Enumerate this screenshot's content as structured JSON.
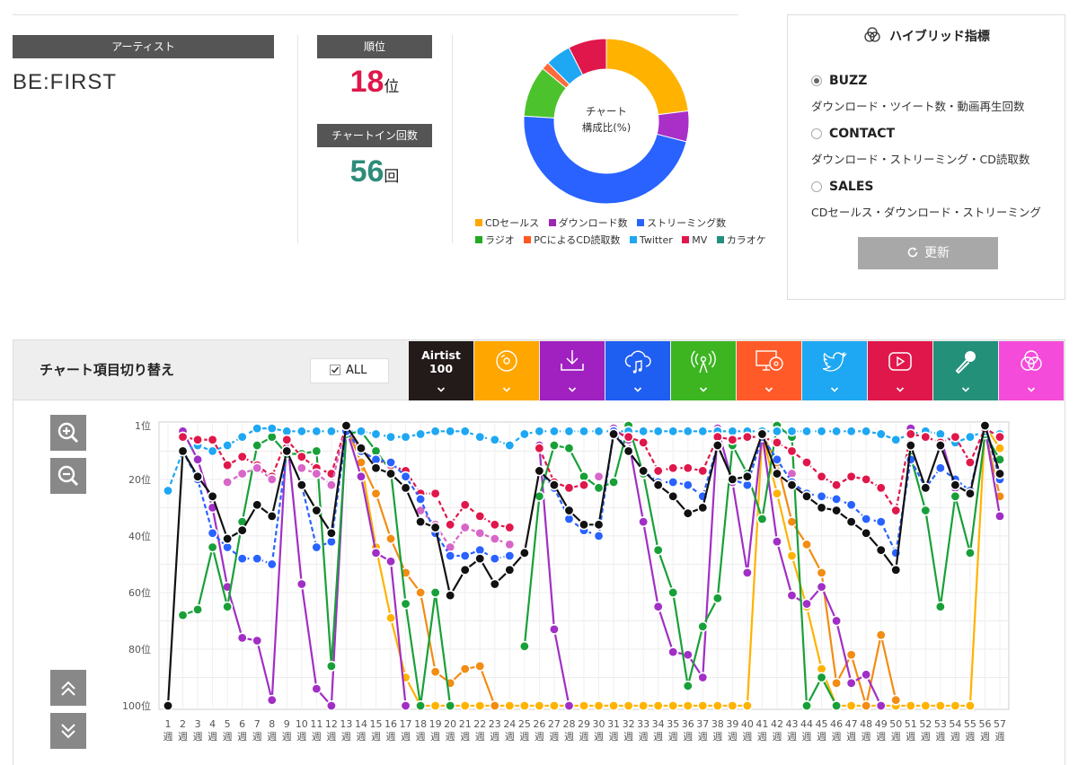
{
  "artist": {
    "label": "アーティスト",
    "name": "BE:FIRST"
  },
  "rank": {
    "label": "順位",
    "value": "18",
    "unit": "位"
  },
  "chartin": {
    "label": "チャートイン回数",
    "value": "56",
    "unit": "回"
  },
  "donut": {
    "center_line1": "チャート",
    "center_line2": "構成比(%)"
  },
  "colors": {
    "cd": "#FFB300",
    "download": "#A000C8",
    "streaming": "#2962FF",
    "radio": "#22AA22",
    "pc": "#FF5722",
    "twitter": "#1EA7F2",
    "mv": "#E0174A",
    "karaoke": "#22907A",
    "hybrid": "#F050D0",
    "artist100": "#111111"
  },
  "legend": [
    {
      "label": "CDセールス",
      "color": "#FFB300"
    },
    {
      "label": "ダウンロード数",
      "color": "#9C27B0"
    },
    {
      "label": "ストリーミング数",
      "color": "#2962FF"
    },
    {
      "label": "ラジオ",
      "color": "#22AA22"
    },
    {
      "label": "PCによるCD読取数",
      "color": "#FF5722"
    },
    {
      "label": "Twitter",
      "color": "#1EA7F2"
    },
    {
      "label": "MV",
      "color": "#E0174A"
    },
    {
      "label": "カラオケ",
      "color": "#22907A"
    }
  ],
  "hybrid": {
    "title": "ハイブリッド指標",
    "options": [
      {
        "name": "BUZZ",
        "desc": "ダウンロード・ツイート数・動画再生回数",
        "selected": true
      },
      {
        "name": "CONTACT",
        "desc": "ダウンロード・ストリーミング・CD読取数",
        "selected": false
      },
      {
        "name": "SALES",
        "desc": "CDセールス・ダウンロード・ストリーミング",
        "selected": false
      }
    ],
    "refresh_label": "更新"
  },
  "toolbar": {
    "title": "チャート項目切り替え",
    "all_label": "ALL",
    "tabs": [
      {
        "key": "artist100",
        "label1": "Airtist",
        "label2": "100",
        "icon": "text-label",
        "color": "#221B19"
      },
      {
        "key": "cd",
        "icon": "disc-icon",
        "color": "#FFA600"
      },
      {
        "key": "download",
        "icon": "download-icon",
        "color": "#A020C0"
      },
      {
        "key": "streaming",
        "icon": "cloud-music-icon",
        "color": "#1E5EF0"
      },
      {
        "key": "radio",
        "icon": "radio-tower-icon",
        "color": "#3CB521"
      },
      {
        "key": "pc",
        "icon": "monitor-disc-icon",
        "color": "#FF5A28"
      },
      {
        "key": "twitter",
        "icon": "twitter-icon",
        "color": "#1EA7F2"
      },
      {
        "key": "mv",
        "icon": "play-video-icon",
        "color": "#E0174A"
      },
      {
        "key": "karaoke",
        "icon": "microphone-icon",
        "color": "#23907A"
      },
      {
        "key": "hybrid",
        "icon": "hybrid-icon",
        "color": "#F44BDA"
      }
    ]
  },
  "chart_data": [
    {
      "type": "pie",
      "title": "",
      "center_text": "チャート 構成比(%)",
      "slices": [
        {
          "name": "CDセールス",
          "value": 23,
          "color": "#FFB300"
        },
        {
          "name": "ダウンロード数",
          "value": 6,
          "color": "#A92FC8"
        },
        {
          "name": "ストリーミング数",
          "value": 47,
          "color": "#2962FF"
        },
        {
          "name": "ラジオ",
          "value": 10,
          "color": "#4CC22C"
        },
        {
          "name": "PCによるCD読取数",
          "value": 1.5,
          "color": "#FF6A3D"
        },
        {
          "name": "Twitter",
          "value": 5,
          "color": "#1EA7F2"
        },
        {
          "name": "MV",
          "value": 7.5,
          "color": "#E0174A"
        }
      ]
    },
    {
      "type": "line",
      "title": "",
      "categories": [
        "1\n週",
        "2\n週",
        "3\n週",
        "4\n週",
        "5\n週",
        "6\n週",
        "7\n週",
        "8\n週",
        "9\n週",
        "10\n週",
        "11\n週",
        "12\n週",
        "13\n週",
        "14\n週",
        "15\n週",
        "16\n週",
        "17\n週",
        "18\n週",
        "19\n週",
        "20\n週",
        "21\n週",
        "22\n週",
        "23\n週",
        "24\n週",
        "25\n週",
        "26\n週",
        "27\n週",
        "28\n週",
        "29\n週",
        "30\n週",
        "31\n週",
        "32\n週",
        "33\n週",
        "34\n週",
        "35\n週",
        "36\n週",
        "37\n週",
        "38\n週",
        "39\n週",
        "40\n週",
        "41\n週",
        "42\n週",
        "43\n週",
        "44\n週",
        "45\n週",
        "46\n週",
        "47\n週",
        "48\n週",
        "49\n週",
        "50\n週",
        "51\n週",
        "52\n週",
        "53\n週",
        "54\n週",
        "55\n週",
        "56\n週",
        "57\n週"
      ],
      "y_ticks": [
        "1位",
        "20位",
        "40位",
        "60位",
        "80位",
        "100位"
      ],
      "y_tick_values": [
        1,
        20,
        40,
        60,
        80,
        100
      ],
      "ylim": [
        1,
        100
      ],
      "y_inverted": true,
      "series": [
        {
          "key": "cd",
          "dash": false,
          "color": "#FFB300",
          "values": [
            null,
            null,
            null,
            null,
            null,
            null,
            null,
            null,
            null,
            null,
            null,
            null,
            1,
            14,
            44,
            69,
            90,
            100,
            100,
            100,
            100,
            100,
            100,
            100,
            100,
            100,
            100,
            100,
            100,
            100,
            100,
            100,
            100,
            100,
            100,
            100,
            100,
            100,
            100,
            100,
            4,
            25,
            47,
            65,
            87,
            100,
            100,
            100,
            100,
            100,
            100,
            100,
            100,
            100,
            100,
            1,
            9
          ]
        },
        {
          "key": "pc",
          "dash": false,
          "color": "#F28C13",
          "values": [
            null,
            null,
            null,
            null,
            null,
            null,
            null,
            null,
            null,
            null,
            null,
            null,
            1,
            14,
            25,
            41,
            53,
            60,
            88,
            92,
            87,
            86,
            100,
            null,
            null,
            null,
            null,
            null,
            null,
            null,
            null,
            null,
            null,
            null,
            null,
            null,
            null,
            null,
            null,
            null,
            4,
            14,
            35,
            43,
            53,
            92,
            82,
            100,
            75,
            98,
            null,
            null,
            null,
            null,
            null,
            3,
            26
          ]
        },
        {
          "key": "download",
          "dash": false,
          "color": "#A12FC5",
          "values": [
            null,
            3,
            13,
            30,
            58,
            76,
            77,
            98,
            4,
            57,
            94,
            100,
            2,
            19,
            46,
            49,
            100,
            null,
            null,
            null,
            null,
            null,
            null,
            null,
            null,
            8,
            73,
            100,
            null,
            null,
            2,
            6,
            35,
            65,
            81,
            82,
            90,
            2,
            21,
            53,
            4,
            42,
            61,
            64,
            58,
            70,
            92,
            89,
            100,
            null,
            2,
            null,
            5,
            23,
            null,
            2,
            33
          ]
        },
        {
          "key": "radio",
          "dash": false,
          "color": "#18A038",
          "values": [
            null,
            68,
            66,
            44,
            65,
            35,
            8,
            5,
            11,
            11,
            10,
            86,
            4,
            3,
            10,
            17,
            64,
            100,
            60,
            100,
            null,
            null,
            null,
            null,
            79,
            26,
            8,
            9,
            19,
            23,
            21,
            1,
            18,
            45,
            60,
            93,
            72,
            62,
            8,
            18,
            34,
            1,
            5,
            100,
            90,
            100,
            null,
            null,
            null,
            null,
            12,
            31,
            65,
            26,
            46,
            4,
            13
          ]
        },
        {
          "key": "twitter",
          "dash": true,
          "color": "#1EA7F2",
          "values": [
            24,
            10,
            8,
            10,
            8,
            5,
            2,
            2,
            3,
            3,
            3,
            3,
            3,
            3,
            4,
            5,
            5,
            4,
            3,
            3,
            3,
            5,
            6,
            8,
            4,
            3,
            3,
            3,
            3,
            3,
            3,
            3,
            3,
            3,
            3,
            3,
            3,
            3,
            3,
            3,
            3,
            3,
            3,
            3,
            3,
            3,
            3,
            3,
            4,
            6,
            4,
            3,
            4,
            7,
            5,
            3,
            4
          ]
        },
        {
          "key": "mv",
          "dash": true,
          "color": "#E0174A",
          "values": [
            null,
            5,
            6,
            6,
            15,
            12,
            15,
            19,
            6,
            12,
            16,
            18,
            1,
            10,
            13,
            15,
            17,
            25,
            25,
            36,
            29,
            33,
            36,
            37,
            null,
            9,
            21,
            23,
            22,
            null,
            3,
            5,
            7,
            17,
            16,
            16,
            17,
            5,
            6,
            5,
            5,
            7,
            10,
            14,
            19,
            22,
            19,
            20,
            23,
            31,
            4,
            5,
            7,
            5,
            14,
            2,
            5
          ]
        },
        {
          "key": "karaoke",
          "dash": true,
          "color": "#D866C8",
          "values": [
            null,
            null,
            null,
            null,
            21,
            18,
            16,
            20,
            null,
            16,
            18,
            22,
            1,
            10,
            null,
            null,
            null,
            31,
            36,
            44,
            37,
            39,
            41,
            43,
            null,
            null,
            null,
            null,
            null,
            19,
            null,
            null,
            null,
            null,
            null,
            null,
            null,
            null,
            null,
            null,
            null,
            null,
            18,
            null,
            null,
            null,
            null,
            null,
            null,
            null,
            null,
            null,
            null,
            null,
            null,
            null,
            null
          ]
        },
        {
          "key": "streaming",
          "dash": true,
          "color": "#2962FF",
          "values": [
            null,
            10,
            20,
            39,
            44,
            48,
            48,
            50,
            10,
            22,
            44,
            42,
            3,
            10,
            13,
            14,
            19,
            27,
            39,
            47,
            47,
            45,
            48,
            47,
            null,
            17,
            23,
            34,
            38,
            40,
            3,
            10,
            17,
            21,
            21,
            22,
            26,
            8,
            20,
            22,
            5,
            13,
            21,
            25,
            26,
            27,
            29,
            34,
            35,
            46,
            13,
            23,
            16,
            20,
            24,
            1,
            20
          ]
        },
        {
          "key": "artist100",
          "dash": false,
          "color": "#111111",
          "values": [
            100,
            10,
            19,
            26,
            41,
            38,
            29,
            33,
            10,
            22,
            31,
            39,
            1,
            9,
            16,
            18,
            23,
            35,
            37,
            61,
            52,
            48,
            57,
            52,
            46,
            17,
            22,
            31,
            36,
            36,
            4,
            10,
            17,
            22,
            26,
            32,
            30,
            8,
            20,
            19,
            4,
            18,
            22,
            26,
            30,
            31,
            35,
            39,
            45,
            52,
            8,
            23,
            8,
            22,
            25,
            1,
            18
          ]
        }
      ]
    }
  ]
}
